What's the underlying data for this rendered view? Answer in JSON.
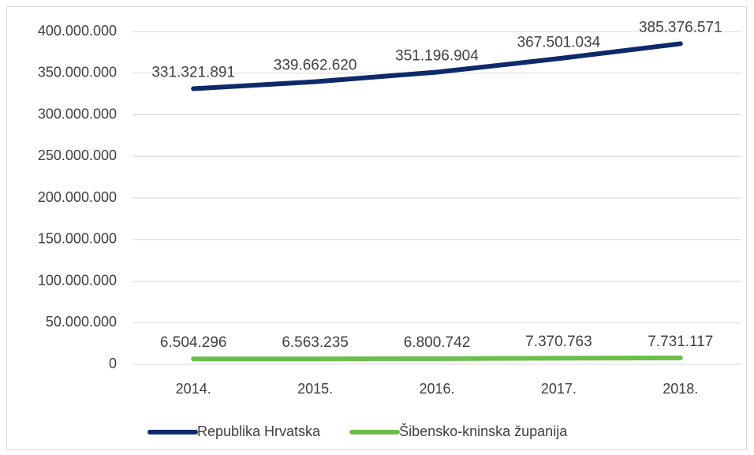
{
  "chart_data": {
    "type": "line",
    "categories": [
      "2014.",
      "2015.",
      "2016.",
      "2017.",
      "2018."
    ],
    "series": [
      {
        "name": "Republika Hrvatska",
        "color": "#0e2a6b",
        "values": [
          331321891,
          339662620,
          351196904,
          367501034,
          385376571
        ],
        "value_labels": [
          "331.321.891",
          "339.662.620",
          "351.196.904",
          "367.501.034",
          "385.376.571"
        ]
      },
      {
        "name": "Šibensko-kninska županija",
        "color": "#6abf4b",
        "values": [
          6504296,
          6563235,
          6800742,
          7370763,
          7731117
        ],
        "value_labels": [
          "6.504.296",
          "6.563.235",
          "6.800.742",
          "7.370.763",
          "7.731.117"
        ]
      }
    ],
    "ylim": [
      0,
      400000000
    ],
    "yticks": [
      0,
      {
        "value": 50000000,
        "label": "50.000.000"
      },
      {
        "value": 100000000,
        "label": "100.000.000"
      },
      {
        "value": 150000000,
        "label": "150.000.000"
      },
      {
        "value": 200000000,
        "label": "200.000.000"
      },
      {
        "value": 250000000,
        "label": "250.000.000"
      },
      {
        "value": 300000000,
        "label": "300.000.000"
      },
      {
        "value": 350000000,
        "label": "350.000.000"
      },
      {
        "value": 400000000,
        "label": "400.000.000"
      }
    ],
    "grid": true,
    "legend": "bottom"
  }
}
